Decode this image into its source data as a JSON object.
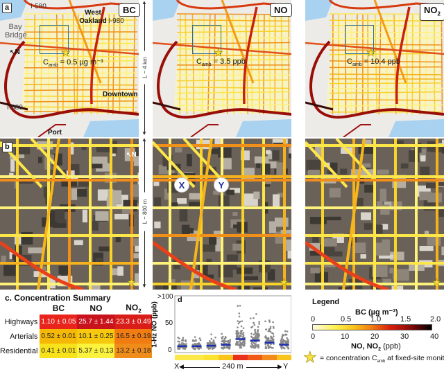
{
  "panel_a": {
    "label": "a",
    "maps": [
      {
        "pollutant": "BC",
        "c_amb_prefix": "C",
        "c_amb_sub": "amb",
        "c_amb_value": " = 0.5 µg m⁻³"
      },
      {
        "pollutant": "NO",
        "c_amb_prefix": "C",
        "c_amb_sub": "amb",
        "c_amb_value": " = 3.5 ppb"
      },
      {
        "pollutant": "NO",
        "pollutant_sub": "2",
        "c_amb_prefix": "C",
        "c_amb_sub": "amb",
        "c_amb_value": " = 10.4 ppb"
      }
    ],
    "place_labels": {
      "i580": "I-580",
      "west_oakland": "West Oakland",
      "i980": "I-980",
      "bay_bridge": "Bay Bridge",
      "north": "N",
      "downtown": "Downtown",
      "i880": "I-880",
      "port": "Port"
    },
    "scale": "L ~ 4 km"
  },
  "panel_b": {
    "label": "b",
    "north": "N",
    "scale": "L ~ 800 m",
    "point_x": "X",
    "point_y": "Y"
  },
  "panel_c": {
    "title": "c. Concentration Summary",
    "columns": [
      "BC",
      "NO",
      "NO"
    ],
    "column_subs": [
      "",
      "",
      "2"
    ],
    "rows": [
      {
        "label": "Highways",
        "values": [
          "1.10 ± 0.05",
          "25.7 ± 1.44",
          "23.3 ± 0.49"
        ],
        "colors": [
          "#e8241c",
          "#c8121c",
          "#d91e1a"
        ],
        "text_color": "#fff"
      },
      {
        "label": "Arterials",
        "values": [
          "0.52 ± 0.01",
          "10.1 ± 0.25",
          "16.5 ± 0.19"
        ],
        "colors": [
          "#f6b806",
          "#f6c80e",
          "#f07c12"
        ],
        "text_color": "#222"
      },
      {
        "label": "Residential",
        "values": [
          "0.41 ± 0.01",
          "5.37 ± 0.13",
          "13.2 ± 0.18"
        ],
        "colors": [
          "#f8e21c",
          "#fbf23e",
          "#f08c1a"
        ],
        "text_color": "#222"
      }
    ]
  },
  "panel_d": {
    "label": "d",
    "ylabel": "1-Hz NO (ppb)",
    "yticks": [
      "0",
      "50",
      ">100"
    ],
    "distance": "240 m",
    "x_start": "X",
    "x_end": "Y",
    "chart_data": {
      "type": "scatter",
      "ylabel": "1-Hz NO (ppb)",
      "ylim": [
        0,
        100
      ],
      "groups": 8,
      "medians": [
        7,
        7,
        8,
        10,
        21,
        18,
        14,
        10
      ],
      "segment_colors": [
        "#fde84a",
        "#fde84a",
        "#fde230",
        "#f9c51c",
        "#e8301c",
        "#f05a16",
        "#f38a1c",
        "#f9c51c"
      ]
    }
  },
  "legend": {
    "title": "Legend",
    "bc_label": "BC (µg m⁻³)",
    "bc_ticks": [
      "0",
      "0.5",
      "1.0",
      "1.5",
      "2.0"
    ],
    "no_ticks": [
      "0",
      "10",
      "20",
      "30",
      "40"
    ],
    "no_label_prefix": "NO, NO",
    "no_label_sub": "2",
    "no_label_suffix": " (ppb)",
    "star_text_prefix": "= concentration C",
    "star_text_sub": "amb",
    "star_text_suffix": " at fixed-site monitor"
  }
}
